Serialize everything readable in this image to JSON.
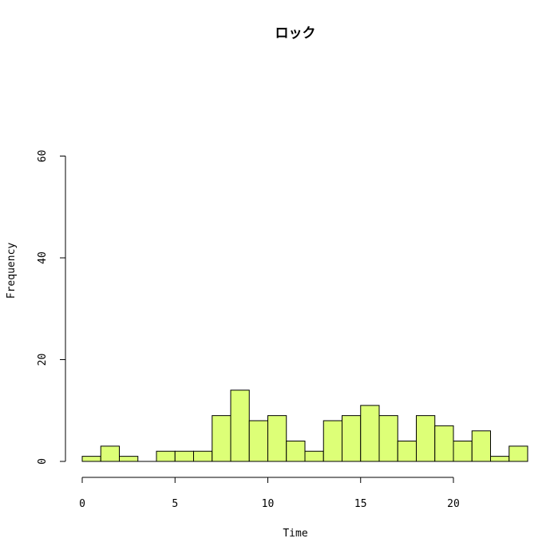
{
  "chart_data": {
    "type": "bar",
    "title": "ロック",
    "xlabel": "Time",
    "ylabel": "Frequency",
    "bar_color": "#DDFF77",
    "bin_width": 1,
    "bins": [
      {
        "start": 0,
        "end": 1,
        "count": 1
      },
      {
        "start": 1,
        "end": 2,
        "count": 3
      },
      {
        "start": 2,
        "end": 3,
        "count": 1
      },
      {
        "start": 3,
        "end": 4,
        "count": 0
      },
      {
        "start": 4,
        "end": 5,
        "count": 2
      },
      {
        "start": 5,
        "end": 6,
        "count": 2
      },
      {
        "start": 6,
        "end": 7,
        "count": 2
      },
      {
        "start": 7,
        "end": 8,
        "count": 9
      },
      {
        "start": 8,
        "end": 9,
        "count": 14
      },
      {
        "start": 9,
        "end": 10,
        "count": 8
      },
      {
        "start": 10,
        "end": 11,
        "count": 9
      },
      {
        "start": 11,
        "end": 12,
        "count": 4
      },
      {
        "start": 12,
        "end": 13,
        "count": 2
      },
      {
        "start": 13,
        "end": 14,
        "count": 8
      },
      {
        "start": 14,
        "end": 15,
        "count": 9
      },
      {
        "start": 15,
        "end": 16,
        "count": 11
      },
      {
        "start": 16,
        "end": 17,
        "count": 9
      },
      {
        "start": 17,
        "end": 18,
        "count": 4
      },
      {
        "start": 18,
        "end": 19,
        "count": 9
      },
      {
        "start": 19,
        "end": 20,
        "count": 7
      },
      {
        "start": 20,
        "end": 21,
        "count": 4
      },
      {
        "start": 21,
        "end": 22,
        "count": 6
      },
      {
        "start": 22,
        "end": 23,
        "count": 1
      },
      {
        "start": 23,
        "end": 24,
        "count": 3
      }
    ],
    "x_ticks": [
      0,
      5,
      10,
      15,
      20
    ],
    "y_ticks": [
      0,
      20,
      40,
      60
    ],
    "xlim": [
      0,
      24
    ],
    "ylim": [
      0,
      60
    ],
    "grid": false,
    "legend": "none"
  }
}
